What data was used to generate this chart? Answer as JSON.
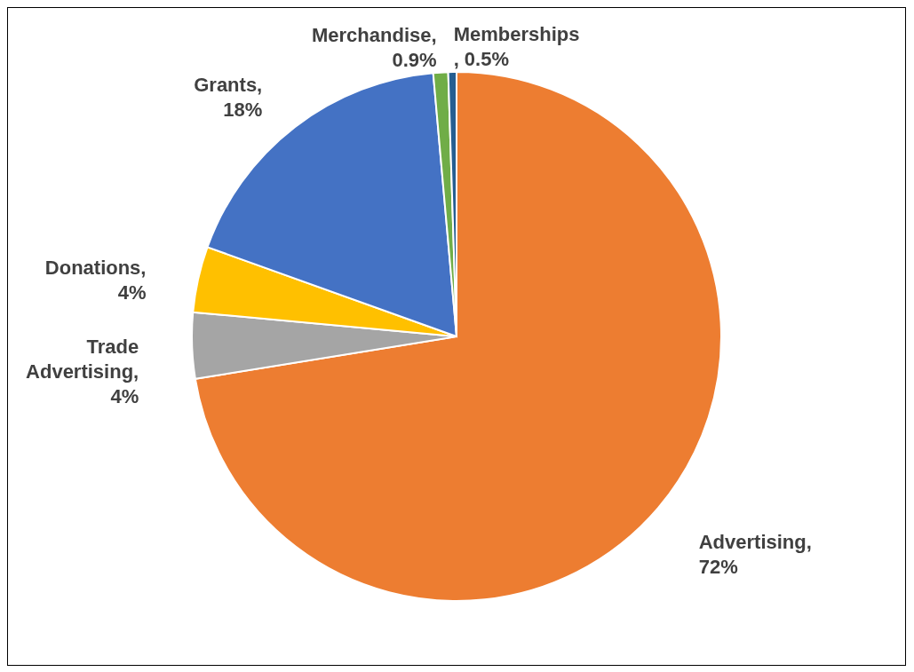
{
  "chart_data": {
    "type": "pie",
    "categories": [
      "Advertising",
      "Trade Advertising",
      "Donations",
      "Grants",
      "Merchandise",
      "Memberships"
    ],
    "values": [
      72,
      4,
      4,
      18,
      0.9,
      0.5
    ],
    "colors": [
      "#ed7d31",
      "#a5a5a5",
      "#ffc000",
      "#4472c4",
      "#70ad47",
      "#255e91"
    ],
    "value_labels": [
      ", 72%",
      ", 4%",
      ", 4%",
      ", 18%",
      ", 0.9%",
      ", 0.5%"
    ]
  }
}
